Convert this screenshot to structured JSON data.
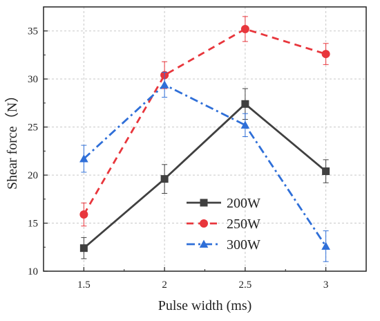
{
  "chart_data": {
    "type": "line",
    "x": [
      1.5,
      2,
      2.5,
      3
    ],
    "xticks": [
      "1.5",
      "2",
      "2.5",
      "3"
    ],
    "yticks": [
      "10",
      "15",
      "20",
      "25",
      "30",
      "35"
    ],
    "xlabel": "Pulse width (ms)",
    "ylabel": "Shear force（N）",
    "xlim": [
      1.25,
      3.25
    ],
    "ylim": [
      10,
      37.5
    ],
    "grid": true,
    "legend_position": "lower-center",
    "series": [
      {
        "name": "200W",
        "values": [
          12.4,
          19.6,
          27.4,
          20.4
        ],
        "errors": [
          1.1,
          1.5,
          1.6,
          1.2
        ],
        "color": "#404040",
        "marker": "square",
        "line_style": "solid"
      },
      {
        "name": "250W",
        "values": [
          15.9,
          30.4,
          35.2,
          32.6
        ],
        "errors": [
          1.2,
          1.4,
          1.3,
          1.1
        ],
        "color": "#e8363c",
        "marker": "circle",
        "line_style": "dash"
      },
      {
        "name": "300W",
        "values": [
          21.7,
          29.4,
          25.2,
          12.6
        ],
        "errors": [
          1.4,
          1.3,
          1.2,
          1.6
        ],
        "color": "#2f6fd8",
        "marker": "triangle",
        "line_style": "dash-dot"
      }
    ]
  }
}
